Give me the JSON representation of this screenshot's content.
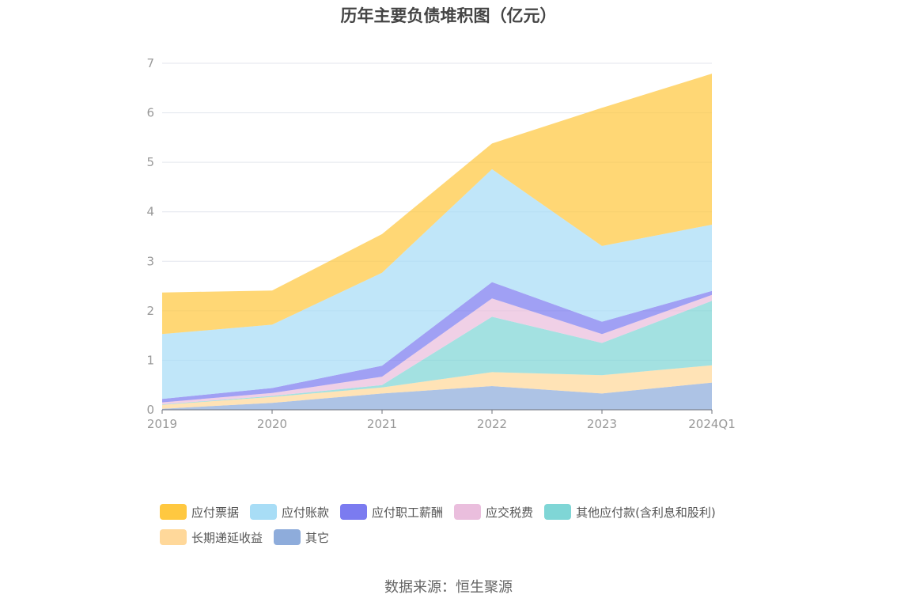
{
  "chart_data": {
    "type": "area",
    "stacked": true,
    "title": "历年主要负债堆积图（亿元）",
    "categories": [
      "2019",
      "2020",
      "2021",
      "2022",
      "2023",
      "2024Q1"
    ],
    "ylim": [
      0,
      7
    ],
    "yticks": [
      0,
      1,
      2,
      3,
      4,
      5,
      6,
      7
    ],
    "grid": true,
    "legend_position": "bottom",
    "series": [
      {
        "name": "其它",
        "color": "#8EACDB",
        "values": [
          0.02,
          0.14,
          0.33,
          0.48,
          0.33,
          0.55
        ]
      },
      {
        "name": "长期递延收益",
        "color": "#FFD89A",
        "values": [
          0.08,
          0.12,
          0.12,
          0.28,
          0.37,
          0.35
        ]
      },
      {
        "name": "其他应付款(含利息和股利)",
        "color": "#7FD6D6",
        "values": [
          0.01,
          0.02,
          0.05,
          1.12,
          0.65,
          1.3
        ]
      },
      {
        "name": "应交税费",
        "color": "#EABEDD",
        "values": [
          0.04,
          0.06,
          0.17,
          0.37,
          0.18,
          0.12
        ]
      },
      {
        "name": "应付职工薪酬",
        "color": "#7B7BF0",
        "values": [
          0.07,
          0.1,
          0.22,
          0.33,
          0.25,
          0.08
        ]
      },
      {
        "name": "应付账款",
        "color": "#A8DDF6",
        "values": [
          1.31,
          1.28,
          1.88,
          2.28,
          1.53,
          1.34
        ]
      },
      {
        "name": "应付票据",
        "color": "#FFC840",
        "values": [
          0.84,
          0.69,
          0.78,
          0.52,
          2.79,
          3.05
        ]
      }
    ]
  },
  "legend_rows": [
    [
      "应付票据",
      "应付账款",
      "应付职工薪酬",
      "应交税费",
      "其他应付款(含利息和股利)"
    ],
    [
      "长期递延收益",
      "其它"
    ]
  ],
  "source": "数据来源：恒生聚源"
}
